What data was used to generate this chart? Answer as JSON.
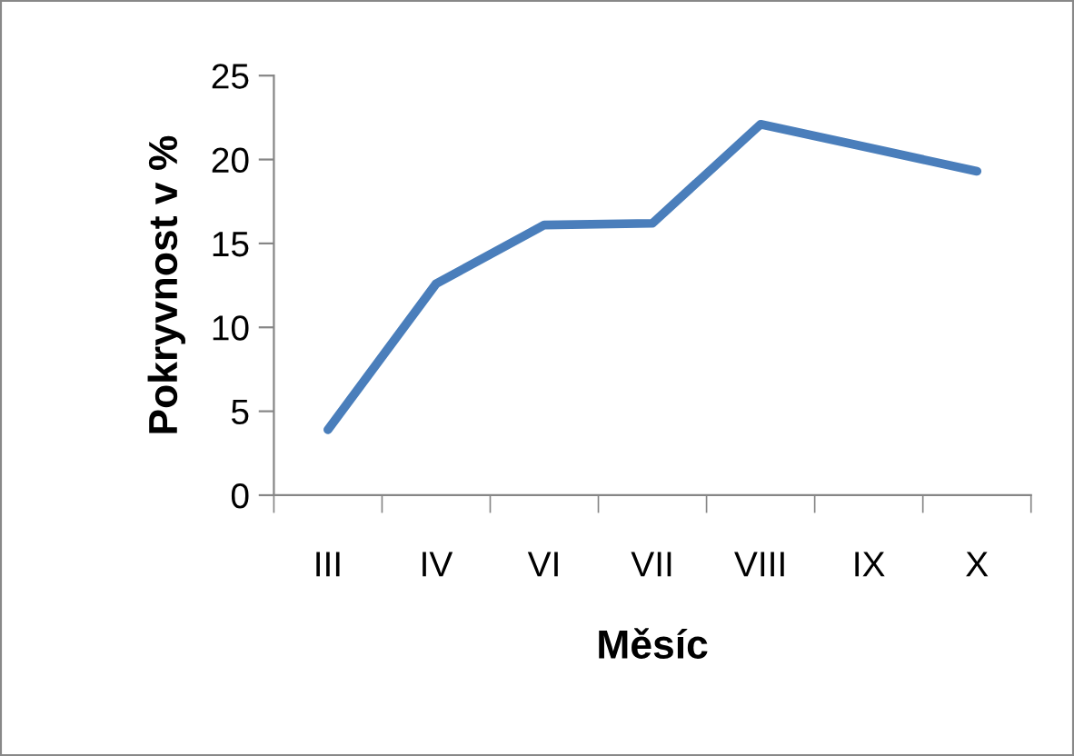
{
  "chart_data": {
    "type": "line",
    "xlabel": "Měsíc",
    "ylabel": "Pokryvnost v %",
    "categories": [
      "III",
      "IV",
      "VI",
      "VII",
      "VIII",
      "IX",
      "X"
    ],
    "series": [
      {
        "color": "#4a7ebb",
        "values": [
          3.9,
          12.6,
          16.1,
          16.2,
          22.1,
          20.7,
          19.3
        ]
      }
    ],
    "ylim": [
      0,
      25
    ],
    "yticks": [
      0,
      5,
      10,
      15,
      20,
      25
    ],
    "grid": false,
    "legend": false,
    "marker": "none",
    "line_style": "solid"
  }
}
